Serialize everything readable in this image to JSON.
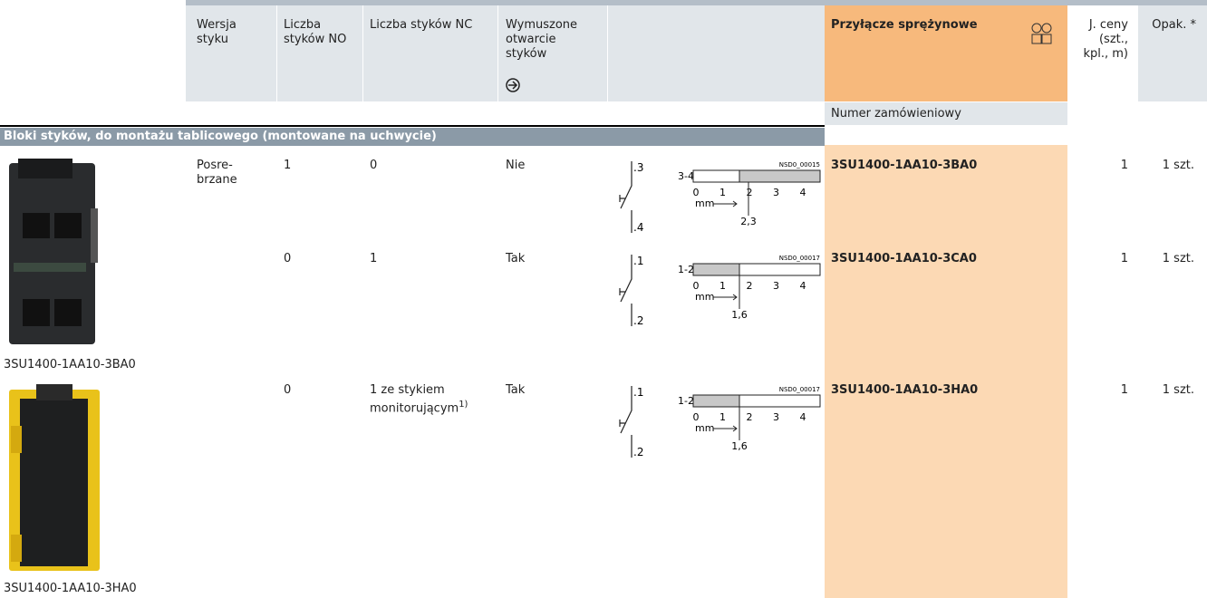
{
  "header": {
    "columns": [
      "Wersja styku",
      "Liczba styków NO",
      "Liczba styków NC",
      "Wymuszone otwarcie styków"
    ],
    "spring_connection": "Przyłącze sprężynowe",
    "unit_price": "J. ceny (szt., kpl., m)",
    "pack": "Opak. *",
    "order_number": "Numer zamówieniowy"
  },
  "section": "Bloki styków, do montażu tablicowego (montowane na uchwycie)",
  "images": [
    "3SU1400-1AA10-3BA0",
    "3SU1400-1AA10-3HA0"
  ],
  "rows": [
    {
      "version": "Posre-brzane",
      "no": "1",
      "nc": "0",
      "nc_note": "",
      "forced": "Nie",
      "order": "3SU1400-1AA10-3BA0",
      "price_unit": "1",
      "pack": "1 szt.",
      "diagram": {
        "top": ".3",
        "bottom": ".4",
        "contacts": "3-4",
        "code": "NSD0_00015",
        "scale": [
          "0",
          "1",
          "2",
          "3",
          "4"
        ],
        "unit": "mm",
        "travel": "2,3"
      }
    },
    {
      "version": "",
      "no": "0",
      "nc": "1",
      "nc_note": "",
      "forced": "Tak",
      "order": "3SU1400-1AA10-3CA0",
      "price_unit": "1",
      "pack": "1 szt.",
      "diagram": {
        "top": ".1",
        "bottom": ".2",
        "contacts": "1-2",
        "code": "NSD0_00017",
        "scale": [
          "0",
          "1",
          "2",
          "3",
          "4"
        ],
        "unit": "mm",
        "travel": "1,6"
      }
    },
    {
      "version": "",
      "no": "0",
      "nc": "1 ze stykiem monitorującym",
      "nc_note": "1)",
      "forced": "Tak",
      "order": "3SU1400-1AA10-3HA0",
      "price_unit": "1",
      "pack": "1 szt.",
      "diagram": {
        "top": ".1",
        "bottom": ".2",
        "contacts": "1-2",
        "code": "NSD0_00017",
        "scale": [
          "0",
          "1",
          "2",
          "3",
          "4"
        ],
        "unit": "mm",
        "travel": "1,6"
      }
    }
  ]
}
